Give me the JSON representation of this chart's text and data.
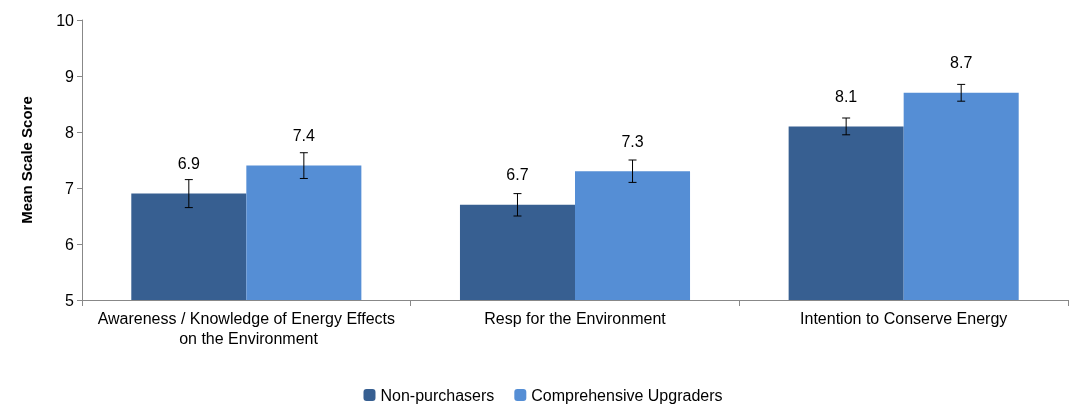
{
  "chart_data": {
    "type": "bar",
    "ylabel": "Mean Scale Score",
    "categories": [
      "Awareness / Knowledge of Energy Effects on the Environment",
      "Resp for the Environment",
      "Intention to Conserve Energy"
    ],
    "series": [
      {
        "name": "Non-purchasers",
        "color": "#375f91",
        "values": [
          6.9,
          6.7,
          8.1
        ],
        "errors": [
          0.25,
          0.2,
          0.15
        ]
      },
      {
        "name": "Comprehensive Upgraders",
        "color": "#558ed5",
        "values": [
          7.4,
          7.3,
          8.7
        ],
        "errors": [
          0.23,
          0.2,
          0.15
        ]
      }
    ],
    "ylim": [
      5,
      10
    ],
    "yticks": [
      5,
      6,
      7,
      8,
      9,
      10
    ],
    "grid": false,
    "legend": "bottom",
    "data_labels": true
  }
}
